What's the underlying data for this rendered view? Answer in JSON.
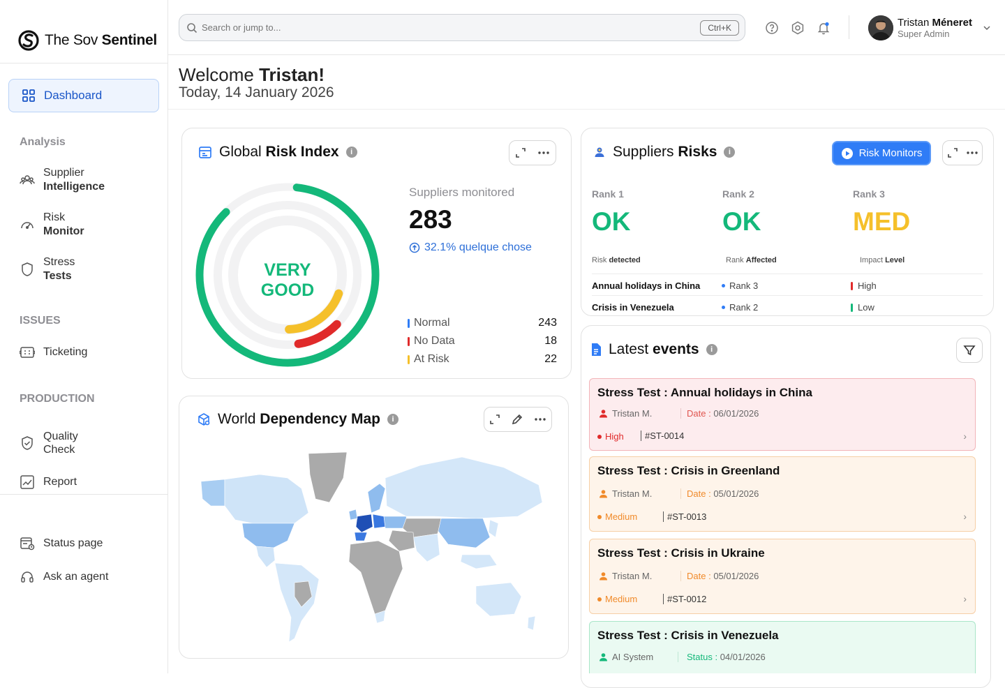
{
  "app": {
    "name_light": "The Sov ",
    "name_bold": "Sentinel"
  },
  "sidebar": {
    "active": "Dashboard",
    "section_analysis": "Analysis",
    "supplier_l1": "Supplier",
    "supplier_l2": "Intelligence",
    "risk_l1": "Risk",
    "risk_l2": "Monitor",
    "stress_l1": "Stress",
    "stress_l2": "Tests",
    "section_issues": "ISSUES",
    "ticketing": "Ticketing",
    "section_production": "PRODUCTION",
    "quality_l1": "Quality",
    "quality_l2": "Check",
    "report": "Report",
    "status_page": "Status page",
    "ask_agent": "Ask an agent"
  },
  "topbar": {
    "search_placeholder": "Search or jump to...",
    "shortcut": "Ctrl+K",
    "user_first": "Tristan ",
    "user_last": "Méneret",
    "user_role": "Super Admin"
  },
  "header": {
    "welcome_prefix": "Welcome ",
    "welcome_name": "Tristan!",
    "today": "Today, 14 January 2026"
  },
  "risk_index": {
    "title_light": "Global ",
    "title_bold": "Risk Index",
    "gauge_line1": "VERY",
    "gauge_line2": "GOOD",
    "monitored_label": "Suppliers monitored",
    "monitored_value": "283",
    "trend": "32.1% quelque chose",
    "legend": [
      {
        "name": "Normal",
        "value": "243",
        "color": "#2f7cf6"
      },
      {
        "name": "No Data",
        "value": "18",
        "color": "#e02a2a"
      },
      {
        "name": "At Risk",
        "value": "22",
        "color": "#f5c02a"
      }
    ],
    "rings": {
      "normal_fraction": 0.86,
      "at_risk_fraction": 0.19,
      "no_data_fraction": 0.1
    },
    "colors": {
      "green": "#14b87a",
      "yellow": "#f5c02a",
      "red": "#e02a2a"
    }
  },
  "suppliers_risks": {
    "title_light": "Suppliers ",
    "title_bold": "Risks",
    "monitors_button": "Risk Monitors",
    "ranks": [
      {
        "label": "Rank 1",
        "value": "OK",
        "color": "#14b87a"
      },
      {
        "label": "Rank 2",
        "value": "OK",
        "color": "#14b87a"
      },
      {
        "label": "Rank 3",
        "value": "MED",
        "color": "#f5c02a"
      }
    ],
    "col1_prefix": "Risk ",
    "col1_bold": "detected",
    "col2_prefix": "Rank ",
    "col2_bold": "Affected",
    "col3_prefix": "Impact ",
    "col3_bold": "Level",
    "rows": [
      {
        "risk": "Annual holidays in China",
        "rank": "Rank 3",
        "impact": "High",
        "impact_color": "#e02a2a"
      },
      {
        "risk": "Crisis in Venezuela",
        "rank": "Rank 2",
        "impact": "Low",
        "impact_color": "#14b87a"
      }
    ]
  },
  "map": {
    "title_light": "World ",
    "title_bold": "Dependency Map"
  },
  "events": {
    "title_light": "Latest ",
    "title_bold": "events",
    "date_label": "Date :",
    "status_label": "Status :",
    "items": [
      {
        "title": "Stress Test : Annual holidays in China",
        "author": "Tristan M.",
        "date": "06/01/2026",
        "severity": "High",
        "id": "#ST-0014"
      },
      {
        "title": "Stress Test : Crisis in Greenland",
        "author": "Tristan M.",
        "date": "05/01/2026",
        "severity": "Medium",
        "id": "#ST-0013"
      },
      {
        "title": "Stress Test : Crisis in Ukraine",
        "author": "Tristan M.",
        "date": "05/01/2026",
        "severity": "Medium",
        "id": "#ST-0012"
      },
      {
        "title": "Stress Test : Crisis in Venezuela",
        "author": "AI System",
        "date": "04/01/2026"
      }
    ]
  }
}
